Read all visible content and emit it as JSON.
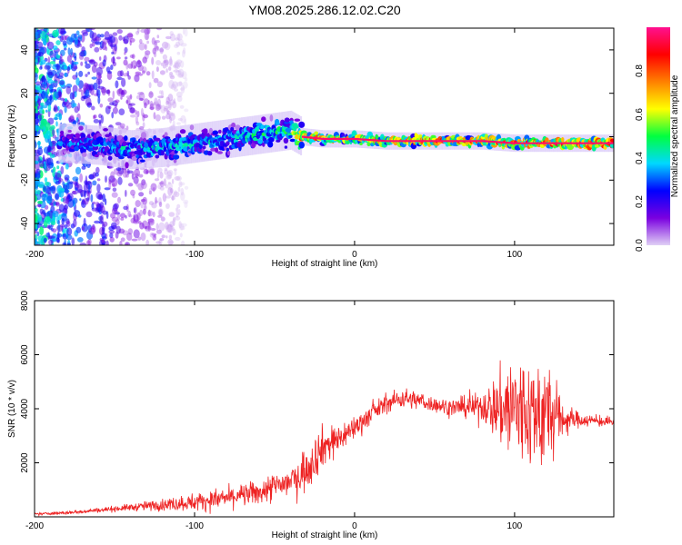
{
  "chart_data": [
    {
      "type": "heatmap",
      "title": "YM08.2025.286.12.02.C20",
      "xlabel": "Height of straight line (km)",
      "ylabel": "Frequency (Hz)",
      "xlim": [
        -200,
        162
      ],
      "ylim": [
        -50,
        50
      ],
      "xticks": [
        "-200",
        "-100",
        "0",
        "100"
      ],
      "xtick_values": [
        -200,
        -100,
        0,
        100
      ],
      "yticks": [
        "-40",
        "-20",
        "0",
        "20",
        "40"
      ],
      "ytick_values": [
        -40,
        -20,
        0,
        20,
        40
      ],
      "colorbar": {
        "label": "Normalized spectral amplitude",
        "range": [
          0,
          1
        ],
        "ticks": [
          "0.0",
          "0.2",
          "0.4",
          "0.6",
          "0.8"
        ],
        "tick_values": [
          0.0,
          0.2,
          0.4,
          0.6,
          0.8
        ],
        "colors": [
          "#e0d0f5",
          "#7a00e0",
          "#0000ff",
          "#00d8ff",
          "#00ff40",
          "#ffff00",
          "#ff8000",
          "#ff0000",
          "#ff1090"
        ]
      },
      "ridge": {
        "description": "frequency center of strong spectral band vs height",
        "x": [
          -180,
          -160,
          -140,
          -120,
          -100,
          -80,
          -60,
          -40,
          -33,
          -20,
          0,
          20,
          40,
          60,
          80,
          100,
          120,
          140,
          162
        ],
        "y": [
          -3,
          -4,
          -6,
          -5,
          -3,
          -1,
          1,
          3,
          0,
          -1,
          -1,
          -2,
          -2,
          -2,
          -2,
          -3,
          -3,
          -3,
          -3
        ],
        "peak_amplitude": [
          0.35,
          0.4,
          0.45,
          0.45,
          0.45,
          0.45,
          0.5,
          0.55,
          0.9,
          0.85,
          0.7,
          0.8,
          0.9,
          0.9,
          0.85,
          0.9,
          0.95,
          1.0,
          1.0
        ]
      }
    },
    {
      "type": "line",
      "xlabel": "Height of straight line (km)",
      "ylabel": "SNR (10 * v/v)",
      "xlim": [
        -200,
        162
      ],
      "ylim": [
        0,
        8000
      ],
      "xticks": [
        "-200",
        "-100",
        "0",
        "100"
      ],
      "xtick_values": [
        -200,
        -100,
        0,
        100
      ],
      "yticks": [
        "2000",
        "4000",
        "6000",
        "8000"
      ],
      "ytick_values": [
        2000,
        4000,
        6000,
        8000
      ],
      "series": [
        {
          "name": "SNR",
          "color": "#ee2222",
          "x": [
            -200,
            -180,
            -160,
            -140,
            -120,
            -100,
            -80,
            -60,
            -50,
            -40,
            -30,
            -20,
            -10,
            0,
            10,
            20,
            30,
            40,
            50,
            60,
            70,
            80,
            90,
            100,
            110,
            120,
            130,
            140,
            150,
            162
          ],
          "y": [
            100,
            150,
            250,
            350,
            450,
            550,
            700,
            900,
            1100,
            1300,
            1800,
            2600,
            2900,
            3300,
            3800,
            4200,
            4400,
            4300,
            4150,
            4050,
            4050,
            4100,
            4000,
            4000,
            3800,
            3800,
            3600,
            3600,
            3550,
            3500
          ],
          "noise_amplitude": [
            40,
            60,
            80,
            120,
            200,
            300,
            350,
            400,
            500,
            600,
            800,
            700,
            500,
            400,
            350,
            300,
            350,
            300,
            250,
            300,
            350,
            500,
            1200,
            2200,
            1800,
            2000,
            600,
            250,
            200,
            150
          ]
        }
      ]
    }
  ]
}
